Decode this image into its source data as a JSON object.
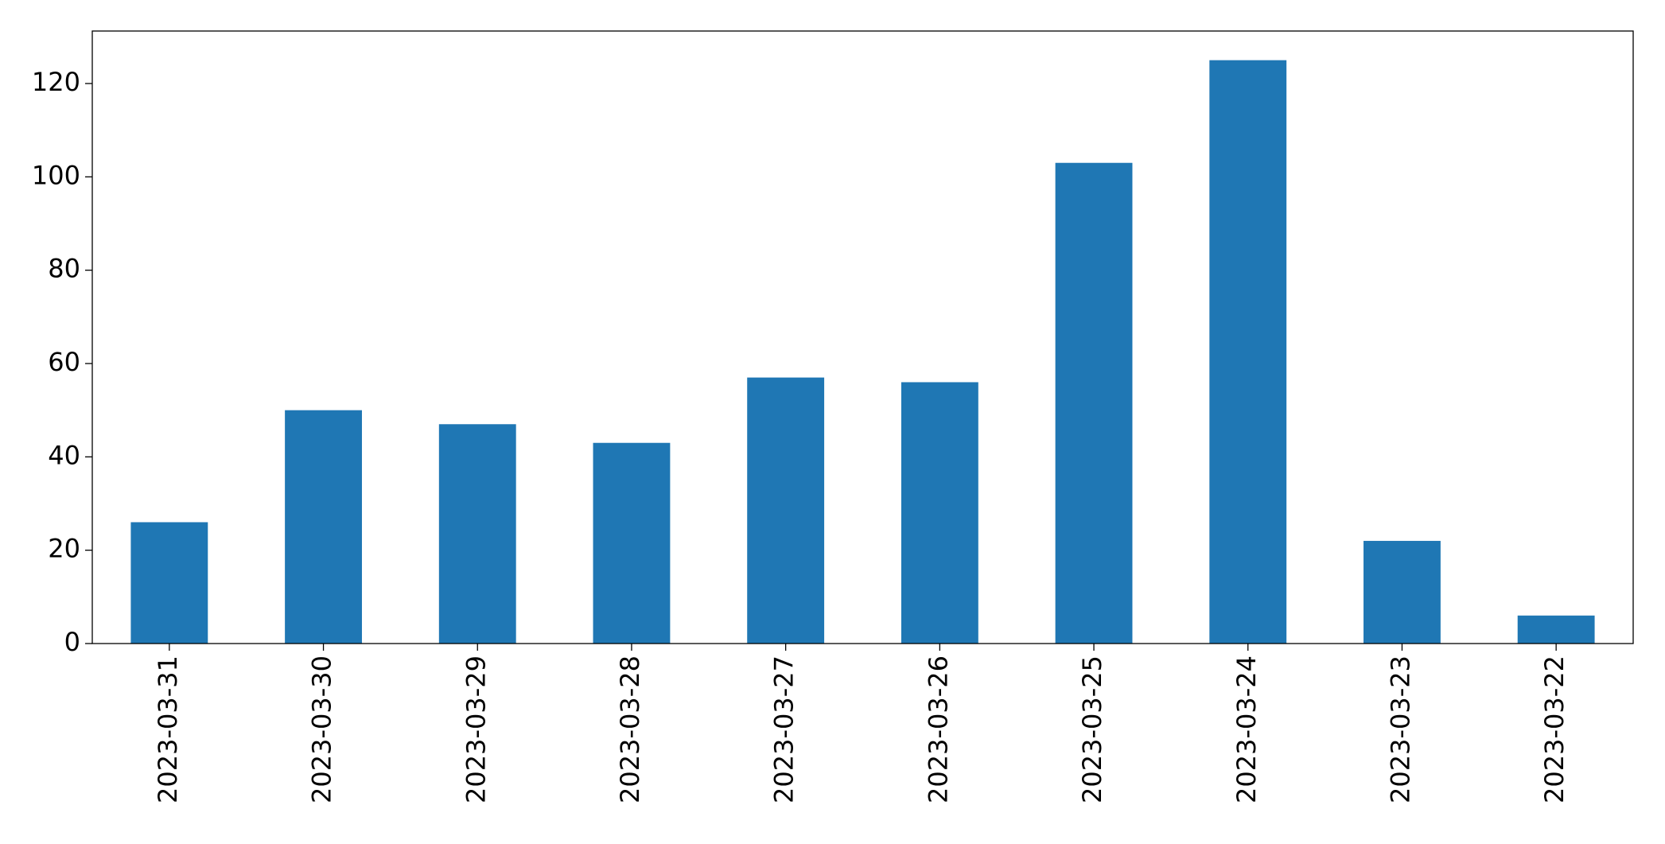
{
  "chart_data": {
    "type": "bar",
    "categories": [
      "2023-03-31",
      "2023-03-30",
      "2023-03-29",
      "2023-03-28",
      "2023-03-27",
      "2023-03-26",
      "2023-03-25",
      "2023-03-24",
      "2023-03-23",
      "2023-03-22"
    ],
    "values": [
      26,
      50,
      47,
      43,
      57,
      56,
      103,
      125,
      22,
      6
    ],
    "color": "#1f77b4",
    "ylim": [
      0,
      131.25
    ],
    "yticks": [
      0,
      20,
      40,
      60,
      80,
      100,
      120
    ],
    "grid": false
  }
}
